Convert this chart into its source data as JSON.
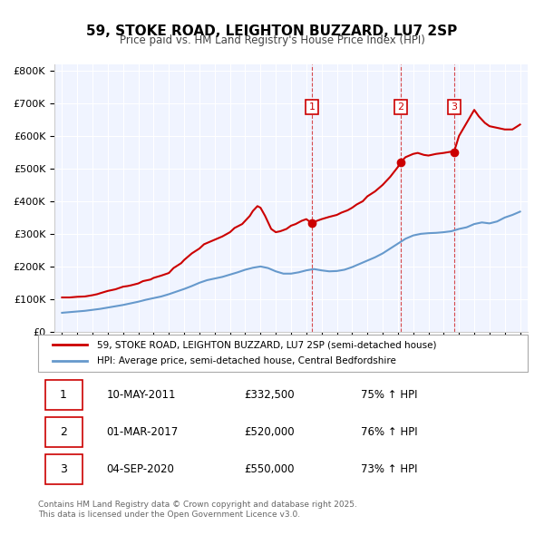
{
  "title": "59, STOKE ROAD, LEIGHTON BUZZARD, LU7 2SP",
  "subtitle": "Price paid vs. HM Land Registry's House Price Index (HPI)",
  "legend_red": "59, STOKE ROAD, LEIGHTON BUZZARD, LU7 2SP (semi-detached house)",
  "legend_blue": "HPI: Average price, semi-detached house, Central Bedfordshire",
  "footer1": "Contains HM Land Registry data © Crown copyright and database right 2025.",
  "footer2": "This data is licensed under the Open Government Licence v3.0.",
  "sale_markers": [
    {
      "id": 1,
      "date_x": 2011.36,
      "price": 332500,
      "label": "1",
      "date_str": "10-MAY-2011",
      "price_str": "£332,500",
      "pct": "75% ↑ HPI"
    },
    {
      "id": 2,
      "date_x": 2017.17,
      "price": 520000,
      "label": "2",
      "date_str": "01-MAR-2017",
      "price_str": "£520,000",
      "pct": "76% ↑ HPI"
    },
    {
      "id": 3,
      "date_x": 2020.67,
      "price": 550000,
      "label": "3",
      "date_str": "04-SEP-2020",
      "price_str": "£550,000",
      "pct": "73% ↑ HPI"
    }
  ],
  "red_color": "#cc0000",
  "blue_color": "#6699cc",
  "bg_color": "#f0f4ff",
  "plot_bg": "#f0f4ff",
  "ylim": [
    0,
    820000
  ],
  "xlim": [
    1994.5,
    2025.5
  ],
  "yticks": [
    0,
    100000,
    200000,
    300000,
    400000,
    500000,
    600000,
    700000,
    800000
  ],
  "ytick_labels": [
    "£0",
    "£100K",
    "£200K",
    "£300K",
    "£400K",
    "£500K",
    "£600K",
    "£700K",
    "£800K"
  ],
  "xticks": [
    1995,
    1996,
    1997,
    1998,
    1999,
    2000,
    2001,
    2002,
    2003,
    2004,
    2005,
    2006,
    2007,
    2008,
    2009,
    2010,
    2011,
    2012,
    2013,
    2014,
    2015,
    2016,
    2017,
    2018,
    2019,
    2020,
    2021,
    2022,
    2023,
    2024,
    2025
  ],
  "red_data": {
    "x": [
      1995.0,
      1995.5,
      1996.0,
      1996.5,
      1997.0,
      1997.3,
      1997.5,
      1998.0,
      1998.5,
      1999.0,
      1999.3,
      1999.5,
      2000.0,
      2000.3,
      2000.8,
      2001.0,
      2001.5,
      2002.0,
      2002.3,
      2002.8,
      2003.0,
      2003.5,
      2004.0,
      2004.3,
      2004.8,
      2005.0,
      2005.5,
      2006.0,
      2006.3,
      2006.8,
      2007.0,
      2007.3,
      2007.5,
      2007.8,
      2008.0,
      2008.3,
      2008.5,
      2008.7,
      2009.0,
      2009.3,
      2009.7,
      2010.0,
      2010.3,
      2010.7,
      2011.0,
      2011.36,
      2011.7,
      2012.0,
      2012.5,
      2013.0,
      2013.3,
      2013.7,
      2014.0,
      2014.3,
      2014.7,
      2015.0,
      2015.5,
      2016.0,
      2016.5,
      2017.0,
      2017.17,
      2017.5,
      2018.0,
      2018.3,
      2018.7,
      2019.0,
      2019.5,
      2020.0,
      2020.5,
      2020.67,
      2021.0,
      2021.5,
      2022.0,
      2022.3,
      2022.7,
      2023.0,
      2023.5,
      2024.0,
      2024.5,
      2025.0
    ],
    "y": [
      105000,
      105000,
      107000,
      108000,
      112000,
      115000,
      118000,
      125000,
      130000,
      138000,
      140000,
      142000,
      148000,
      155000,
      160000,
      165000,
      172000,
      180000,
      195000,
      210000,
      220000,
      240000,
      255000,
      268000,
      278000,
      282000,
      292000,
      305000,
      318000,
      330000,
      340000,
      355000,
      370000,
      385000,
      380000,
      355000,
      335000,
      315000,
      305000,
      308000,
      315000,
      325000,
      330000,
      340000,
      345000,
      332500,
      340000,
      345000,
      352000,
      358000,
      365000,
      372000,
      380000,
      390000,
      400000,
      415000,
      430000,
      450000,
      475000,
      505000,
      520000,
      535000,
      545000,
      548000,
      542000,
      540000,
      545000,
      548000,
      552000,
      550000,
      600000,
      640000,
      680000,
      660000,
      640000,
      630000,
      625000,
      620000,
      620000,
      635000
    ]
  },
  "blue_data": {
    "x": [
      1995.0,
      1995.5,
      1996.0,
      1996.5,
      1997.0,
      1997.5,
      1998.0,
      1998.5,
      1999.0,
      1999.5,
      2000.0,
      2000.5,
      2001.0,
      2001.5,
      2002.0,
      2002.5,
      2003.0,
      2003.5,
      2004.0,
      2004.5,
      2005.0,
      2005.5,
      2006.0,
      2006.5,
      2007.0,
      2007.5,
      2008.0,
      2008.5,
      2009.0,
      2009.5,
      2010.0,
      2010.5,
      2011.0,
      2011.5,
      2012.0,
      2012.5,
      2013.0,
      2013.5,
      2014.0,
      2014.5,
      2015.0,
      2015.5,
      2016.0,
      2016.5,
      2017.0,
      2017.5,
      2018.0,
      2018.5,
      2019.0,
      2019.5,
      2020.0,
      2020.5,
      2021.0,
      2021.5,
      2022.0,
      2022.5,
      2023.0,
      2023.5,
      2024.0,
      2024.5,
      2025.0
    ],
    "y": [
      58000,
      60000,
      62000,
      64000,
      67000,
      70000,
      74000,
      78000,
      82000,
      87000,
      92000,
      98000,
      103000,
      108000,
      115000,
      123000,
      131000,
      140000,
      150000,
      158000,
      163000,
      168000,
      175000,
      182000,
      190000,
      196000,
      200000,
      195000,
      185000,
      178000,
      178000,
      182000,
      188000,
      192000,
      188000,
      185000,
      186000,
      190000,
      198000,
      208000,
      218000,
      228000,
      240000,
      255000,
      270000,
      285000,
      295000,
      300000,
      302000,
      303000,
      305000,
      308000,
      315000,
      320000,
      330000,
      335000,
      332000,
      338000,
      350000,
      358000,
      368000
    ]
  }
}
